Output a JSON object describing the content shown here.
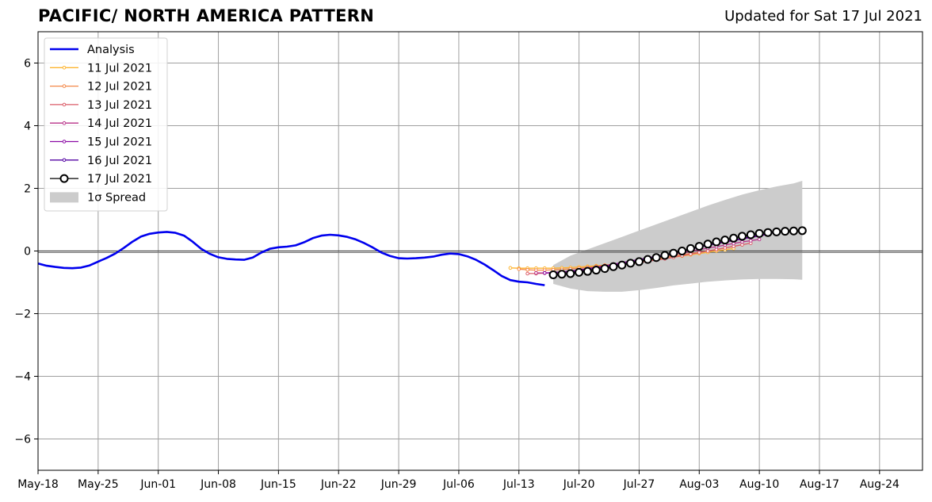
{
  "chart_data": {
    "type": "line",
    "title": "PACIFIC/ NORTH AMERICA PATTERN",
    "subtitle": "Updated for Sat 17 Jul 2021",
    "xlim": [
      "2021-05-18",
      "2021-08-29"
    ],
    "ylim": [
      -7,
      7
    ],
    "xticks": [
      {
        "date": "2021-05-18",
        "label": "May-18"
      },
      {
        "date": "2021-05-25",
        "label": "May-25"
      },
      {
        "date": "2021-06-01",
        "label": "Jun-01"
      },
      {
        "date": "2021-06-08",
        "label": "Jun-08"
      },
      {
        "date": "2021-06-15",
        "label": "Jun-15"
      },
      {
        "date": "2021-06-22",
        "label": "Jun-22"
      },
      {
        "date": "2021-06-29",
        "label": "Jun-29"
      },
      {
        "date": "2021-07-06",
        "label": "Jul-06"
      },
      {
        "date": "2021-07-13",
        "label": "Jul-13"
      },
      {
        "date": "2021-07-20",
        "label": "Jul-20"
      },
      {
        "date": "2021-07-27",
        "label": "Jul-27"
      },
      {
        "date": "2021-08-03",
        "label": "Aug-03"
      },
      {
        "date": "2021-08-10",
        "label": "Aug-10"
      },
      {
        "date": "2021-08-17",
        "label": "Aug-17"
      },
      {
        "date": "2021-08-24",
        "label": "Aug-24"
      }
    ],
    "yticks": [
      {
        "value": 6,
        "label": "6"
      },
      {
        "value": 4,
        "label": "4"
      },
      {
        "value": 2,
        "label": "2"
      },
      {
        "value": 0,
        "label": "0"
      },
      {
        "value": -2,
        "label": "−2"
      },
      {
        "value": -4,
        "label": "−4"
      },
      {
        "value": -6,
        "label": "−6"
      }
    ],
    "grid": true,
    "legend_position": "top-left",
    "analysis": {
      "name": "Analysis",
      "color": "#0000ee",
      "points": [
        [
          "2021-05-18",
          -0.4
        ],
        [
          "2021-05-19",
          -0.47
        ],
        [
          "2021-05-20",
          -0.51
        ],
        [
          "2021-05-21",
          -0.54
        ],
        [
          "2021-05-22",
          -0.55
        ],
        [
          "2021-05-23",
          -0.53
        ],
        [
          "2021-05-24",
          -0.46
        ],
        [
          "2021-05-25",
          -0.34
        ],
        [
          "2021-05-26",
          -0.22
        ],
        [
          "2021-05-27",
          -0.08
        ],
        [
          "2021-05-28",
          0.1
        ],
        [
          "2021-05-29",
          0.3
        ],
        [
          "2021-05-30",
          0.46
        ],
        [
          "2021-05-31",
          0.55
        ],
        [
          "2021-06-01",
          0.59
        ],
        [
          "2021-06-02",
          0.61
        ],
        [
          "2021-06-03",
          0.58
        ],
        [
          "2021-06-04",
          0.49
        ],
        [
          "2021-06-05",
          0.3
        ],
        [
          "2021-06-06",
          0.07
        ],
        [
          "2021-06-07",
          -0.09
        ],
        [
          "2021-06-08",
          -0.2
        ],
        [
          "2021-06-09",
          -0.25
        ],
        [
          "2021-06-10",
          -0.27
        ],
        [
          "2021-06-11",
          -0.28
        ],
        [
          "2021-06-12",
          -0.21
        ],
        [
          "2021-06-13",
          -0.05
        ],
        [
          "2021-06-14",
          0.07
        ],
        [
          "2021-06-15",
          0.12
        ],
        [
          "2021-06-16",
          0.14
        ],
        [
          "2021-06-17",
          0.18
        ],
        [
          "2021-06-18",
          0.28
        ],
        [
          "2021-06-19",
          0.41
        ],
        [
          "2021-06-20",
          0.49
        ],
        [
          "2021-06-21",
          0.52
        ],
        [
          "2021-06-22",
          0.5
        ],
        [
          "2021-06-23",
          0.45
        ],
        [
          "2021-06-24",
          0.37
        ],
        [
          "2021-06-25",
          0.25
        ],
        [
          "2021-06-26",
          0.11
        ],
        [
          "2021-06-27",
          -0.05
        ],
        [
          "2021-06-28",
          -0.16
        ],
        [
          "2021-06-29",
          -0.23
        ],
        [
          "2021-06-30",
          -0.24
        ],
        [
          "2021-07-01",
          -0.23
        ],
        [
          "2021-07-02",
          -0.21
        ],
        [
          "2021-07-03",
          -0.18
        ],
        [
          "2021-07-04",
          -0.12
        ],
        [
          "2021-07-05",
          -0.08
        ],
        [
          "2021-07-06",
          -0.1
        ],
        [
          "2021-07-07",
          -0.17
        ],
        [
          "2021-07-08",
          -0.28
        ],
        [
          "2021-07-09",
          -0.43
        ],
        [
          "2021-07-10",
          -0.61
        ],
        [
          "2021-07-11",
          -0.8
        ],
        [
          "2021-07-12",
          -0.93
        ],
        [
          "2021-07-13",
          -0.98
        ],
        [
          "2021-07-14",
          -1.0
        ],
        [
          "2021-07-15",
          -1.05
        ],
        [
          "2021-07-16",
          -1.09
        ]
      ]
    },
    "forecasts": [
      {
        "name": "11 Jul 2021",
        "color": "#fdb42f",
        "start": "2021-07-12",
        "values": [
          -0.54,
          -0.55,
          -0.55,
          -0.55,
          -0.55,
          -0.55,
          -0.54,
          -0.53,
          -0.51,
          -0.49,
          -0.47,
          -0.45,
          -0.42,
          -0.39,
          -0.36,
          -0.33,
          -0.3,
          -0.27,
          -0.23,
          -0.2,
          -0.16,
          -0.12,
          -0.08,
          -0.04,
          0.0,
          0.04,
          0.08
        ]
      },
      {
        "name": "12 Jul 2021",
        "color": "#f48849",
        "start": "2021-07-13",
        "values": [
          -0.58,
          -0.6,
          -0.61,
          -0.61,
          -0.6,
          -0.59,
          -0.57,
          -0.55,
          -0.52,
          -0.49,
          -0.46,
          -0.43,
          -0.4,
          -0.36,
          -0.32,
          -0.28,
          -0.24,
          -0.2,
          -0.16,
          -0.12,
          -0.08,
          -0.04,
          0.0,
          0.04,
          0.1,
          0.15,
          0.2
        ]
      },
      {
        "name": "13 Jul 2021",
        "color": "#db5c68",
        "start": "2021-07-14",
        "values": [
          -0.72,
          -0.72,
          -0.71,
          -0.69,
          -0.67,
          -0.64,
          -0.61,
          -0.58,
          -0.55,
          -0.52,
          -0.48,
          -0.45,
          -0.41,
          -0.37,
          -0.33,
          -0.29,
          -0.25,
          -0.2,
          -0.15,
          -0.1,
          -0.05,
          0.0,
          0.05,
          0.1,
          0.15,
          0.2,
          0.25
        ]
      },
      {
        "name": "14 Jul 2021",
        "color": "#b83289",
        "start": "2021-07-15",
        "values": [
          -0.7,
          -0.7,
          -0.69,
          -0.67,
          -0.64,
          -0.61,
          -0.57,
          -0.53,
          -0.49,
          -0.45,
          -0.41,
          -0.36,
          -0.31,
          -0.26,
          -0.21,
          -0.16,
          -0.11,
          -0.06,
          -0.01,
          0.04,
          0.09,
          0.14,
          0.19,
          0.24,
          0.29,
          0.33,
          0.37
        ]
      },
      {
        "name": "15 Jul 2021",
        "color": "#8b0aa5",
        "start": "2021-07-16",
        "values": [
          -0.7,
          -0.69,
          -0.67,
          -0.64,
          -0.6,
          -0.56,
          -0.52,
          -0.47,
          -0.42,
          -0.37,
          -0.32,
          -0.27,
          -0.22,
          -0.17,
          -0.12,
          -0.06,
          0.0,
          0.06,
          0.12,
          0.18,
          0.23,
          0.28,
          0.33,
          0.38,
          0.43,
          0.48,
          0.53
        ]
      },
      {
        "name": "16 Jul 2021",
        "color": "#5302a3",
        "start": "2021-07-17",
        "values": [
          -0.73,
          -0.71,
          -0.68,
          -0.64,
          -0.6,
          -0.56,
          -0.51,
          -0.46,
          -0.41,
          -0.36,
          -0.3,
          -0.24,
          -0.18,
          -0.12,
          -0.06,
          0.0,
          0.06,
          0.12,
          0.18,
          0.24,
          0.3,
          0.35,
          0.4,
          0.45,
          0.5,
          0.55,
          0.6
        ]
      },
      {
        "name": "17 Jul 2021",
        "color": "#000000",
        "start": "2021-07-17",
        "open_markers": true,
        "values": [
          -0.76,
          -0.74,
          -0.72,
          -0.68,
          -0.65,
          -0.61,
          -0.56,
          -0.5,
          -0.45,
          -0.39,
          -0.34,
          -0.27,
          -0.21,
          -0.14,
          -0.07,
          0.0,
          0.08,
          0.15,
          0.22,
          0.29,
          0.35,
          0.41,
          0.47,
          0.52,
          0.56,
          0.59,
          0.61,
          0.63,
          0.64,
          0.65
        ]
      }
    ],
    "spread": {
      "name": "1σ Spread",
      "color": "#cccccc",
      "x": [
        "2021-07-17",
        "2021-07-19",
        "2021-07-21",
        "2021-07-23",
        "2021-07-25",
        "2021-07-27",
        "2021-07-29",
        "2021-07-31",
        "2021-08-02",
        "2021-08-04",
        "2021-08-06",
        "2021-08-08",
        "2021-08-10",
        "2021-08-12",
        "2021-08-14",
        "2021-08-15"
      ],
      "upper": [
        -0.45,
        -0.15,
        0.05,
        0.25,
        0.45,
        0.65,
        0.85,
        1.05,
        1.25,
        1.45,
        1.63,
        1.8,
        1.94,
        2.06,
        2.16,
        2.24
      ],
      "lower": [
        -1.05,
        -1.2,
        -1.28,
        -1.3,
        -1.3,
        -1.25,
        -1.18,
        -1.1,
        -1.04,
        -0.98,
        -0.94,
        -0.91,
        -0.89,
        -0.89,
        -0.9,
        -0.92
      ]
    }
  }
}
